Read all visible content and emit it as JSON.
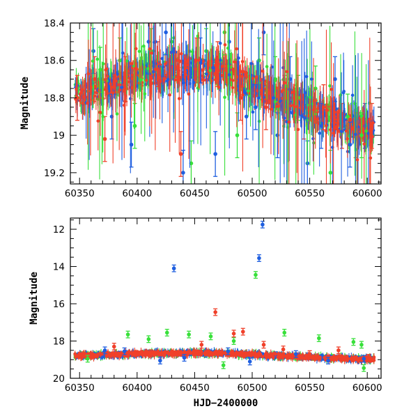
{
  "colors": {
    "blue": "#1f5fe0",
    "green": "#38e03a",
    "red": "#f0402a"
  },
  "chart_data": [
    {
      "type": "scatter",
      "panel": "top",
      "xlim": [
        60342,
        60612
      ],
      "ylim": [
        19.26,
        18.4
      ],
      "y_inverted": true,
      "xticks": [
        60350,
        60400,
        60450,
        60500,
        60550,
        60600
      ],
      "yticks": [
        18.4,
        18.6,
        18.8,
        19,
        19.2
      ],
      "ytick_labels": [
        "18.4",
        "18.6",
        "18.8",
        "19",
        "19.2"
      ],
      "xlabel": "",
      "ylabel": "Magnitude",
      "error_bars": true,
      "trend": [
        [
          60345,
          18.79
        ],
        [
          60365,
          18.76
        ],
        [
          60400,
          18.68
        ],
        [
          60420,
          18.66
        ],
        [
          60450,
          18.64
        ],
        [
          60475,
          18.66
        ],
        [
          60500,
          18.74
        ],
        [
          60525,
          18.8
        ],
        [
          60550,
          18.86
        ],
        [
          60575,
          18.92
        ],
        [
          60590,
          18.96
        ],
        [
          60605,
          18.97
        ]
      ],
      "series": [
        {
          "color": "blue",
          "points": [
            [
              60362,
              18.55
            ],
            [
              60378,
              18.9
            ],
            [
              60395,
              19.05
            ],
            [
              60410,
              18.5
            ],
            [
              60425,
              18.45
            ],
            [
              60440,
              19.2
            ],
            [
              60455,
              18.6
            ],
            [
              60468,
              19.1
            ],
            [
              60480,
              18.5
            ],
            [
              60495,
              18.9
            ],
            [
              60503,
              18.85
            ],
            [
              60510,
              18.45
            ],
            [
              60522,
              19.0
            ],
            [
              60533,
              18.7
            ],
            [
              60548,
              19.15
            ],
            [
              60560,
              18.95
            ],
            [
              60572,
              18.7
            ],
            [
              60585,
              19.05
            ],
            [
              60598,
              18.95
            ]
          ]
        },
        {
          "color": "green",
          "points": [
            [
              60368,
              18.65
            ],
            [
              60385,
              18.6
            ],
            [
              60398,
              18.95
            ],
            [
              60412,
              18.55
            ],
            [
              60430,
              18.5
            ],
            [
              60447,
              19.15
            ],
            [
              60460,
              18.55
            ],
            [
              60476,
              18.45
            ],
            [
              60487,
              19.0
            ],
            [
              60506,
              18.6
            ],
            [
              60520,
              18.7
            ],
            [
              60540,
              18.8
            ],
            [
              60555,
              18.75
            ],
            [
              60568,
              19.2
            ],
            [
              60583,
              18.9
            ],
            [
              60595,
              19.0
            ]
          ]
        },
        {
          "color": "red",
          "points": [
            [
              60348,
              18.8
            ],
            [
              60363,
              18.7
            ],
            [
              60372,
              19.02
            ],
            [
              60390,
              18.7
            ],
            [
              60418,
              18.62
            ],
            [
              60438,
              19.1
            ],
            [
              60452,
              18.6
            ],
            [
              60470,
              18.62
            ],
            [
              60490,
              18.8
            ],
            [
              60512,
              18.85
            ],
            [
              60528,
              18.8
            ],
            [
              60545,
              18.9
            ],
            [
              60562,
              18.85
            ],
            [
              60578,
              18.95
            ],
            [
              60590,
              19.0
            ],
            [
              60604,
              18.95
            ]
          ]
        }
      ]
    },
    {
      "type": "scatter",
      "panel": "bottom",
      "xlim": [
        60342,
        60612
      ],
      "ylim": [
        20,
        11.4
      ],
      "y_inverted": true,
      "xticks": [
        60350,
        60400,
        60450,
        60500,
        60550,
        60600
      ],
      "yticks": [
        12,
        14,
        16,
        18,
        20
      ],
      "ytick_labels": [
        "12",
        "14",
        "16",
        "18",
        "20"
      ],
      "xlabel": "HJD−2400000",
      "ylabel": "Magnitude",
      "error_bars": true,
      "series": [
        {
          "color": "blue",
          "points": [
            [
              60432,
              14.1
            ],
            [
              60509,
              11.75
            ],
            [
              60506,
              13.55
            ],
            [
              60372,
              18.5
            ],
            [
              60389,
              18.55
            ],
            [
              60420,
              19.05
            ],
            [
              60441,
              18.9
            ],
            [
              60479,
              18.55
            ],
            [
              60498,
              19.1
            ],
            [
              60538,
              18.7
            ],
            [
              60566,
              19.05
            ],
            [
              60597,
              18.95
            ]
          ]
        },
        {
          "color": "green",
          "points": [
            [
              60503,
              14.45
            ],
            [
              60392,
              17.65
            ],
            [
              60410,
              17.9
            ],
            [
              60426,
              17.55
            ],
            [
              60445,
              17.65
            ],
            [
              60464,
              17.75
            ],
            [
              60484,
              18.0
            ],
            [
              60528,
              17.55
            ],
            [
              60558,
              17.85
            ],
            [
              60588,
              18.05
            ],
            [
              60595,
              18.2
            ],
            [
              60357,
              18.95
            ],
            [
              60475,
              19.3
            ],
            [
              60597,
              19.45
            ]
          ]
        },
        {
          "color": "red",
          "points": [
            [
              60468,
              16.45
            ],
            [
              60484,
              17.6
            ],
            [
              60492,
              17.5
            ],
            [
              60510,
              18.2
            ],
            [
              60380,
              18.3
            ],
            [
              60412,
              18.65
            ],
            [
              60456,
              18.2
            ],
            [
              60527,
              18.45
            ],
            [
              60550,
              18.7
            ],
            [
              60575,
              18.5
            ],
            [
              60601,
              18.9
            ]
          ]
        }
      ]
    }
  ]
}
